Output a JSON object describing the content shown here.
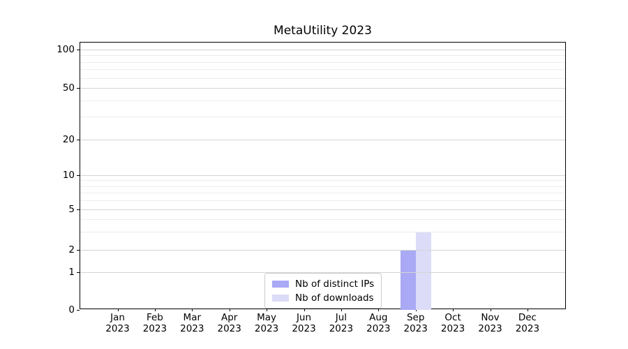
{
  "title": "MetaUtility 2023",
  "legend": {
    "items": [
      {
        "label": "Nb of distinct IPs",
        "color": "#a9a9f5"
      },
      {
        "label": "Nb of downloads",
        "color": "#dcdcf8"
      }
    ]
  },
  "chart_data": {
    "type": "bar",
    "title": "MetaUtility 2023",
    "categories": [
      "Jan 2023",
      "Feb 2023",
      "Mar 2023",
      "Apr 2023",
      "May 2023",
      "Jun 2023",
      "Jul 2023",
      "Aug 2023",
      "Sep 2023",
      "Oct 2023",
      "Nov 2023",
      "Dec 2023"
    ],
    "series": [
      {
        "name": "Nb of distinct IPs",
        "color": "#a9a9f5",
        "values": [
          0,
          0,
          0,
          0,
          0,
          0,
          0,
          0,
          2,
          0,
          0,
          0
        ]
      },
      {
        "name": "Nb of downloads",
        "color": "#dcdcf8",
        "values": [
          0,
          0,
          0,
          0,
          0,
          0,
          0,
          0,
          3,
          0,
          0,
          0
        ]
      }
    ],
    "xlabel": "",
    "ylabel": "",
    "yscale": "symlog",
    "ylim": [
      0,
      110
    ],
    "ytick_values": [
      0,
      1,
      2,
      5,
      10,
      20,
      50,
      100
    ],
    "ytick_labels": [
      "0",
      "1",
      "2",
      "5",
      "10",
      "20",
      "50",
      "100"
    ],
    "minor_tick_values": [
      3,
      4,
      6,
      7,
      8,
      9,
      30,
      40,
      60,
      70,
      80,
      90
    ],
    "grid": "both",
    "legend_position": "lower center"
  }
}
